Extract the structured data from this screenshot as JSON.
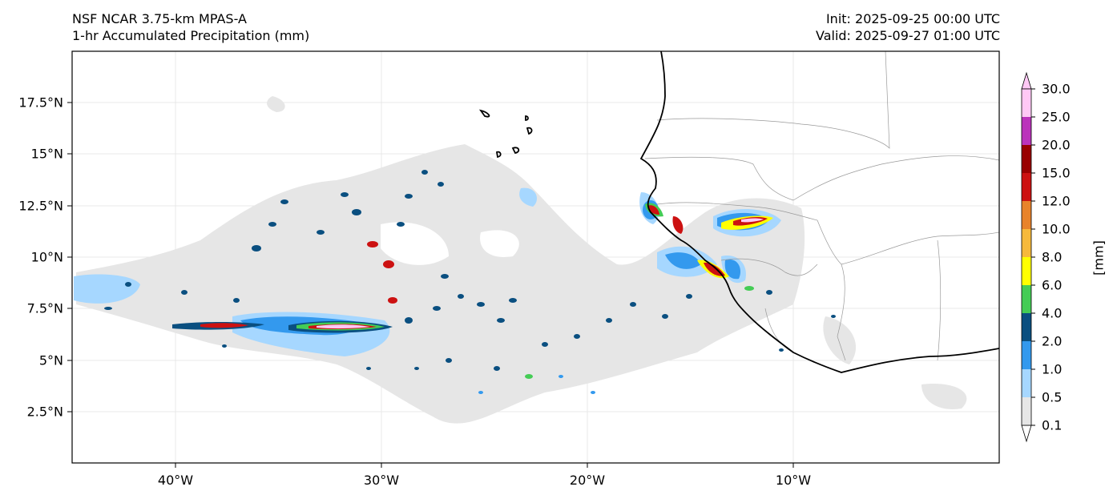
{
  "header": {
    "model": "NSF NCAR 3.75-km MPAS-A",
    "field": "1-hr Accumulated Precipitation (mm)",
    "init": "Init: 2025-09-25 00:00 UTC",
    "valid": "Valid: 2025-09-27 01:00 UTC"
  },
  "map": {
    "lon_range": [
      -45,
      0
    ],
    "lat_range": [
      0,
      20
    ],
    "lat_ticks": [
      {
        "value": 17.5,
        "label": "17.5°N"
      },
      {
        "value": 15,
        "label": "15°N"
      },
      {
        "value": 12.5,
        "label": "12.5°N"
      },
      {
        "value": 10,
        "label": "10°N"
      },
      {
        "value": 7.5,
        "label": "7.5°N"
      },
      {
        "value": 5,
        "label": "5°N"
      },
      {
        "value": 2.5,
        "label": "2.5°N"
      }
    ],
    "lon_ticks": [
      {
        "value": -40,
        "label": "40°W"
      },
      {
        "value": -30,
        "label": "30°W"
      },
      {
        "value": -20,
        "label": "20°W"
      },
      {
        "value": -10,
        "label": "10°W"
      }
    ],
    "precip_areas": [
      {
        "region": "ITCZ band 7-8N, 40-28W",
        "peak_mm": 25
      },
      {
        "region": "Coast of Guinea ~12N 16W",
        "peak_mm": 20
      },
      {
        "region": "Interior Guinea ~11.5N 12W",
        "peak_mm": 20
      },
      {
        "region": "Sierra Leone coast ~9N 13.5W",
        "peak_mm": 20
      }
    ]
  },
  "colorbar": {
    "unit": "[mm]",
    "levels": [
      "0.1",
      "0.5",
      "1.0",
      "2.0",
      "4.0",
      "6.0",
      "8.0",
      "10.0",
      "12.0",
      "15.0",
      "20.0",
      "25.0",
      "30.0"
    ],
    "colors": [
      "#e6e6e6",
      "#a6d7ff",
      "#3399ee",
      "#0a4f80",
      "#44cc55",
      "#ffff00",
      "#f6b93b",
      "#e8832a",
      "#cc1111",
      "#990000",
      "#bb33bb",
      "#ffc8f5"
    ]
  }
}
